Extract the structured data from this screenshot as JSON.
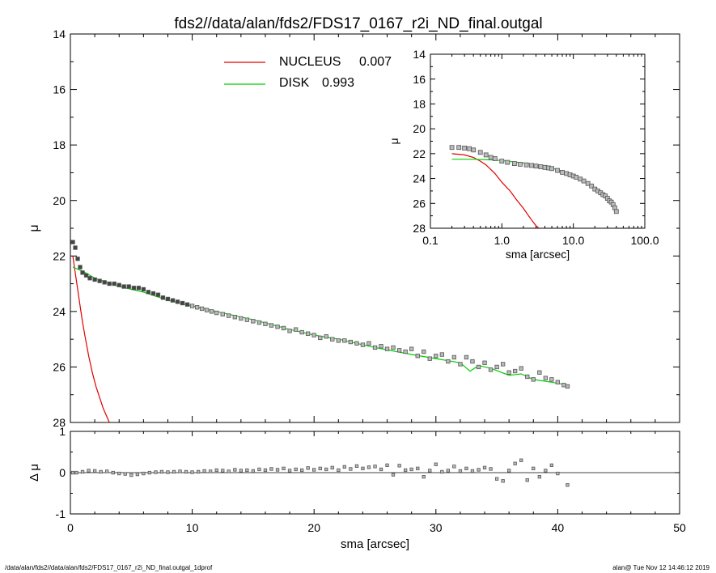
{
  "title": "fds2//data/alan/fds2/FDS17_0167_r2i_ND_final.outgal",
  "footer": {
    "left": "/data/alan/fds2//data/alan/fds2/FDS17_0167_r2i_ND_final.outgal_1dprof",
    "right": "alan@  Tue Nov 12 14:46:12 2019"
  },
  "colors": {
    "nucleus": "#e00000",
    "disk": "#00d000",
    "data": "#555555",
    "axis": "#000000"
  },
  "chart_data": [
    {
      "id": "main",
      "type": "scatter",
      "xlabel": "sma [arcsec]",
      "ylabel": "μ",
      "xlim": [
        0,
        50
      ],
      "ylim": [
        28,
        14
      ],
      "xticks": [
        0,
        10,
        20,
        30,
        40,
        50
      ],
      "yticks": [
        14,
        16,
        18,
        20,
        22,
        24,
        26,
        28
      ],
      "legend": {
        "placement": "top-center",
        "entries": [
          {
            "label": "NUCLEUS",
            "value": "0.007",
            "color": "#e00000"
          },
          {
            "label": "DISK",
            "value": "0.993",
            "color": "#00d000"
          }
        ]
      },
      "series": [
        {
          "name": "NUCLEUS",
          "kind": "line",
          "color": "#e00000",
          "x": [
            0.2,
            0.4,
            0.6,
            0.8,
            1.0,
            1.2,
            1.5,
            1.8,
            2.1,
            2.4,
            2.7,
            3.0,
            3.2
          ],
          "y": [
            22.0,
            22.6,
            23.2,
            23.8,
            24.4,
            24.9,
            25.6,
            26.2,
            26.7,
            27.1,
            27.5,
            27.8,
            28.0
          ]
        },
        {
          "name": "DISK",
          "kind": "line",
          "color": "#00d000",
          "x": [
            0.2,
            1.0,
            2.0,
            4.0,
            6.0,
            8.0,
            10.0,
            12.0,
            15.0,
            18.0,
            20.0,
            22.0,
            25.0,
            28.0,
            30.0,
            32.0,
            32.8,
            33.5,
            34.5,
            36.0,
            37.0,
            38.0,
            39.5,
            40.8
          ],
          "y": [
            22.4,
            22.55,
            22.8,
            23.1,
            23.3,
            23.6,
            23.8,
            24.0,
            24.3,
            24.65,
            24.85,
            25.0,
            25.3,
            25.55,
            25.7,
            25.85,
            26.15,
            25.95,
            26.05,
            26.3,
            26.25,
            26.45,
            26.55,
            26.65
          ]
        },
        {
          "name": "data",
          "kind": "points",
          "color": "#555555",
          "x": [
            0.2,
            0.4,
            0.6,
            0.8,
            1.0,
            1.3,
            1.6,
            2.0,
            2.4,
            2.8,
            3.2,
            3.6,
            4.0,
            4.4,
            4.8,
            5.2,
            5.6,
            6.0,
            6.4,
            6.8,
            7.2,
            7.6,
            8.0,
            8.4,
            8.8,
            9.2,
            9.6,
            10.0,
            10.4,
            10.8,
            11.2,
            11.6,
            12.0,
            12.5,
            13.0,
            13.5,
            14.0,
            14.5,
            15.0,
            15.5,
            16.0,
            16.5,
            17.0,
            17.5,
            18.0,
            18.5,
            19.0,
            19.5,
            20.0,
            20.5,
            21.0,
            21.5,
            22.0,
            22.5,
            23.0,
            23.5,
            24.0,
            24.5,
            25.0,
            25.5,
            26.0,
            26.5,
            27.0,
            27.5,
            28.0,
            28.5,
            29.0,
            29.5,
            30.0,
            30.5,
            31.0,
            31.5,
            32.0,
            32.5,
            33.0,
            33.5,
            34.0,
            34.5,
            35.0,
            35.5,
            36.0,
            36.5,
            37.0,
            37.5,
            38.0,
            38.5,
            39.0,
            39.5,
            40.0,
            40.5,
            40.8
          ],
          "y": [
            21.5,
            21.7,
            22.1,
            22.4,
            22.6,
            22.7,
            22.8,
            22.85,
            22.9,
            22.95,
            23.0,
            23.0,
            23.05,
            23.1,
            23.1,
            23.15,
            23.15,
            23.2,
            23.3,
            23.35,
            23.4,
            23.5,
            23.55,
            23.6,
            23.65,
            23.7,
            23.75,
            23.8,
            23.85,
            23.9,
            23.95,
            24.0,
            24.05,
            24.1,
            24.15,
            24.2,
            24.25,
            24.3,
            24.35,
            24.4,
            24.45,
            24.5,
            24.55,
            24.6,
            24.7,
            24.65,
            24.75,
            24.8,
            24.85,
            24.95,
            24.9,
            25.0,
            25.05,
            25.05,
            25.1,
            25.15,
            25.2,
            25.15,
            25.3,
            25.25,
            25.35,
            25.3,
            25.4,
            25.45,
            25.35,
            25.6,
            25.45,
            25.7,
            25.6,
            25.55,
            25.8,
            25.65,
            25.9,
            25.65,
            25.8,
            26.0,
            25.85,
            26.1,
            26.0,
            25.9,
            26.2,
            26.15,
            26.05,
            26.35,
            26.45,
            26.2,
            26.4,
            26.45,
            26.55,
            26.65,
            26.7
          ]
        }
      ]
    },
    {
      "id": "inset",
      "type": "scatter",
      "xlabel": "sma [arcsec]",
      "ylabel": "μ",
      "xscale": "log",
      "xlim": [
        0.1,
        100.0
      ],
      "ylim": [
        28,
        14
      ],
      "xtick_labels": [
        "0.1",
        "1.0",
        "10.0",
        "100.0"
      ],
      "yticks": [
        14,
        16,
        18,
        20,
        22,
        24,
        26,
        28
      ],
      "series": [
        {
          "name": "NUCLEUS",
          "kind": "line",
          "color": "#e00000",
          "x": [
            0.2,
            0.3,
            0.4,
            0.5,
            0.6,
            0.8,
            1.0,
            1.3,
            1.6,
            2.0,
            2.5,
            3.0,
            3.3
          ],
          "y": [
            22.0,
            22.1,
            22.3,
            22.6,
            22.9,
            23.6,
            24.3,
            25.0,
            25.7,
            26.4,
            27.2,
            27.8,
            28.0
          ]
        },
        {
          "name": "DISK",
          "kind": "line",
          "color": "#00d000",
          "x": [
            0.2,
            0.4,
            0.7,
            1.0,
            2.0,
            4.0,
            7.0,
            10.0,
            15.0,
            20.0,
            25.0,
            30.0,
            35.0,
            40.0
          ],
          "y": [
            22.45,
            22.45,
            22.5,
            22.55,
            22.75,
            23.0,
            23.4,
            23.8,
            24.25,
            24.9,
            25.3,
            25.75,
            26.1,
            26.6
          ]
        },
        {
          "name": "data",
          "kind": "points",
          "color": "#555555",
          "x": [
            0.2,
            0.25,
            0.3,
            0.35,
            0.4,
            0.5,
            0.6,
            0.7,
            0.8,
            1.0,
            1.2,
            1.5,
            1.8,
            2.2,
            2.6,
            3.0,
            3.5,
            4.0,
            4.5,
            5.0,
            6.0,
            7.0,
            8.0,
            9.0,
            10.0,
            11.0,
            12.5,
            14.0,
            16.0,
            18.0,
            20.0,
            22.0,
            24.0,
            26.0,
            28.0,
            30.0,
            32.0,
            34.0,
            36.0,
            38.0,
            40.0
          ],
          "y": [
            21.5,
            21.5,
            21.55,
            21.6,
            21.7,
            21.9,
            22.1,
            22.3,
            22.4,
            22.6,
            22.7,
            22.8,
            22.85,
            22.9,
            22.95,
            23.0,
            23.05,
            23.1,
            23.15,
            23.2,
            23.35,
            23.5,
            23.6,
            23.7,
            23.8,
            23.9,
            24.05,
            24.2,
            24.4,
            24.6,
            24.85,
            25.0,
            25.15,
            25.3,
            25.4,
            25.6,
            25.8,
            25.9,
            26.1,
            26.35,
            26.65
          ]
        }
      ]
    },
    {
      "id": "residual",
      "type": "scatter",
      "xlabel": "sma [arcsec]",
      "ylabel": "Δ μ",
      "xlim": [
        0,
        50
      ],
      "ylim": [
        -1,
        1
      ],
      "xticks": [
        0,
        10,
        20,
        30,
        40,
        50
      ],
      "yticks": [
        -1,
        0,
        1
      ],
      "series": [
        {
          "name": "residuals",
          "kind": "points",
          "color": "#555555",
          "x": [
            0.2,
            0.5,
            1.0,
            1.5,
            2.0,
            2.5,
            3.0,
            3.5,
            4.0,
            4.5,
            5.0,
            5.5,
            6.0,
            6.5,
            7.0,
            7.5,
            8.0,
            8.5,
            9.0,
            9.5,
            10.0,
            10.5,
            11.0,
            11.5,
            12.0,
            12.5,
            13.0,
            13.5,
            14.0,
            14.5,
            15.0,
            15.5,
            16.0,
            16.5,
            17.0,
            17.5,
            18.0,
            18.5,
            19.0,
            19.5,
            20.0,
            20.5,
            21.0,
            21.5,
            22.0,
            22.5,
            23.0,
            23.5,
            24.0,
            24.5,
            25.0,
            25.5,
            26.0,
            26.5,
            27.0,
            27.5,
            28.0,
            28.5,
            29.0,
            29.5,
            30.0,
            30.5,
            31.0,
            31.5,
            32.0,
            32.5,
            33.0,
            33.5,
            34.0,
            34.5,
            35.0,
            35.5,
            36.0,
            36.5,
            37.0,
            37.5,
            38.0,
            38.5,
            39.0,
            39.5,
            40.0,
            40.8
          ],
          "y": [
            0.0,
            0.0,
            0.02,
            0.05,
            0.04,
            0.02,
            0.03,
            0.0,
            -0.02,
            -0.03,
            -0.06,
            -0.04,
            -0.02,
            0.0,
            0.01,
            0.02,
            0.01,
            0.02,
            0.03,
            0.02,
            0.01,
            0.02,
            0.04,
            0.03,
            0.06,
            0.05,
            0.03,
            0.07,
            0.05,
            0.06,
            0.04,
            0.08,
            0.06,
            0.09,
            0.07,
            0.1,
            0.05,
            0.08,
            0.06,
            0.11,
            0.07,
            0.1,
            0.08,
            0.12,
            0.06,
            0.14,
            0.09,
            0.16,
            0.1,
            0.13,
            0.15,
            0.08,
            0.18,
            -0.05,
            0.17,
            0.06,
            0.08,
            0.1,
            -0.1,
            0.05,
            0.2,
            0.02,
            0.05,
            0.15,
            0.04,
            0.1,
            0.04,
            0.07,
            0.12,
            0.09,
            -0.15,
            -0.2,
            0.05,
            0.22,
            0.3,
            -0.18,
            0.1,
            -0.1,
            0.05,
            0.18,
            -0.02,
            -0.3
          ]
        }
      ]
    }
  ]
}
